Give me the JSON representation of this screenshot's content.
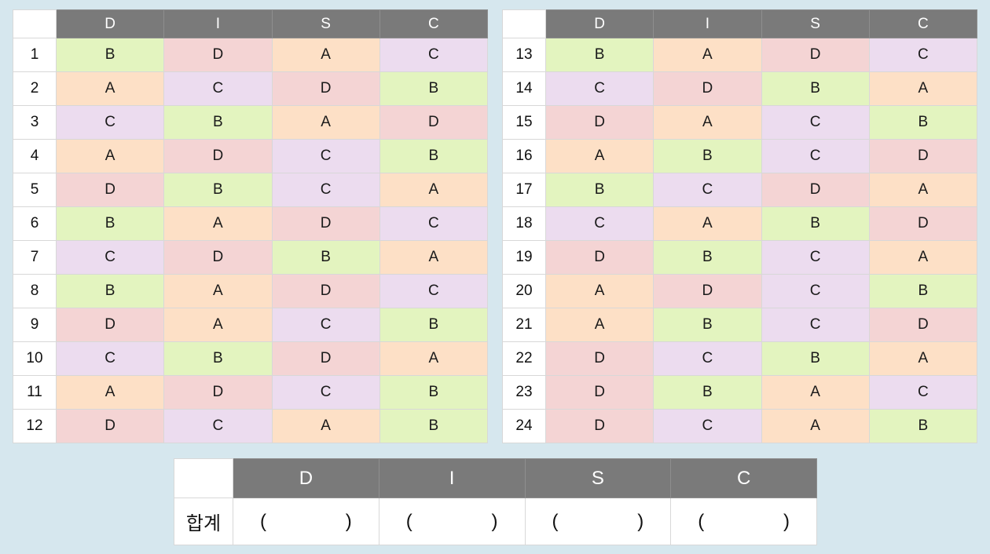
{
  "headers": [
    "D",
    "I",
    "S",
    "C"
  ],
  "left_table": {
    "rows": [
      {
        "num": "1",
        "cells": [
          "B",
          "D",
          "A",
          "C"
        ]
      },
      {
        "num": "2",
        "cells": [
          "A",
          "C",
          "D",
          "B"
        ]
      },
      {
        "num": "3",
        "cells": [
          "C",
          "B",
          "A",
          "D"
        ]
      },
      {
        "num": "4",
        "cells": [
          "A",
          "D",
          "C",
          "B"
        ]
      },
      {
        "num": "5",
        "cells": [
          "D",
          "B",
          "C",
          "A"
        ]
      },
      {
        "num": "6",
        "cells": [
          "B",
          "A",
          "D",
          "C"
        ]
      },
      {
        "num": "7",
        "cells": [
          "C",
          "D",
          "B",
          "A"
        ]
      },
      {
        "num": "8",
        "cells": [
          "B",
          "A",
          "D",
          "C"
        ]
      },
      {
        "num": "9",
        "cells": [
          "D",
          "A",
          "C",
          "B"
        ]
      },
      {
        "num": "10",
        "cells": [
          "C",
          "B",
          "D",
          "A"
        ]
      },
      {
        "num": "11",
        "cells": [
          "A",
          "D",
          "C",
          "B"
        ]
      },
      {
        "num": "12",
        "cells": [
          "D",
          "C",
          "A",
          "B"
        ]
      }
    ]
  },
  "right_table": {
    "rows": [
      {
        "num": "13",
        "cells": [
          "B",
          "A",
          "D",
          "C"
        ]
      },
      {
        "num": "14",
        "cells": [
          "C",
          "D",
          "B",
          "A"
        ]
      },
      {
        "num": "15",
        "cells": [
          "D",
          "A",
          "C",
          "B"
        ]
      },
      {
        "num": "16",
        "cells": [
          "A",
          "B",
          "C",
          "D"
        ]
      },
      {
        "num": "17",
        "cells": [
          "B",
          "C",
          "D",
          "A"
        ]
      },
      {
        "num": "18",
        "cells": [
          "C",
          "A",
          "B",
          "D"
        ]
      },
      {
        "num": "19",
        "cells": [
          "D",
          "B",
          "C",
          "A"
        ]
      },
      {
        "num": "20",
        "cells": [
          "A",
          "D",
          "C",
          "B"
        ]
      },
      {
        "num": "21",
        "cells": [
          "A",
          "B",
          "C",
          "D"
        ]
      },
      {
        "num": "22",
        "cells": [
          "D",
          "C",
          "B",
          "A"
        ]
      },
      {
        "num": "23",
        "cells": [
          "D",
          "B",
          "A",
          "C"
        ]
      },
      {
        "num": "24",
        "cells": [
          "D",
          "C",
          "A",
          "B"
        ]
      }
    ]
  },
  "summary": {
    "row_label": "합계",
    "open_paren": "(",
    "close_paren": ")"
  },
  "colors": {
    "page_background": "#d6e7ee",
    "header_background": "#7a7a7a",
    "A": "#fde0c6",
    "B": "#e3f4bf",
    "C": "#ecdcef",
    "D": "#f4d4d4"
  }
}
